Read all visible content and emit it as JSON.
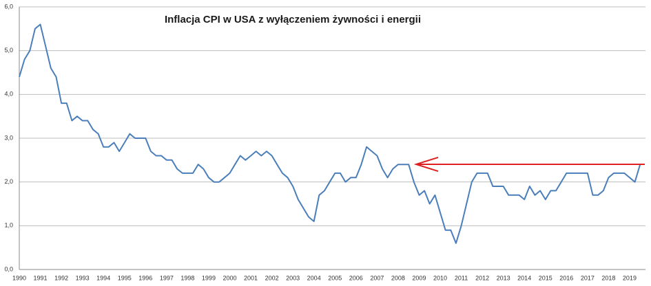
{
  "chart_data": {
    "type": "line",
    "title": "Inflacja CPI w USA z wyłączeniem żywności i energii",
    "categories": [
      "1990",
      null,
      null,
      null,
      "1991",
      null,
      null,
      null,
      "1992",
      null,
      null,
      null,
      "1993",
      null,
      null,
      null,
      "1994",
      null,
      null,
      null,
      "1995",
      null,
      null,
      null,
      "1996",
      null,
      null,
      null,
      "1997",
      null,
      null,
      null,
      "1998",
      null,
      null,
      null,
      "1999",
      null,
      null,
      null,
      "2000",
      null,
      null,
      null,
      "2001",
      null,
      null,
      null,
      "2002",
      null,
      null,
      null,
      "2003",
      null,
      null,
      null,
      "2004",
      null,
      null,
      null,
      "2005",
      null,
      null,
      null,
      "2006",
      null,
      null,
      null,
      "2007",
      null,
      null,
      null,
      "2008",
      null,
      null,
      null,
      "2009",
      null,
      null,
      null,
      "2010",
      null,
      null,
      null,
      "2011",
      null,
      null,
      null,
      "2012",
      null,
      null,
      null,
      "2013",
      null,
      null,
      null,
      "2014",
      null,
      null,
      null,
      "2015",
      null,
      null,
      null,
      "2016",
      null,
      null,
      null,
      "2017",
      null,
      null,
      null,
      "2018",
      null,
      null,
      null,
      "2019",
      null,
      null
    ],
    "values": [
      4.4,
      4.8,
      5.0,
      5.5,
      5.6,
      5.1,
      4.6,
      4.4,
      3.8,
      3.8,
      3.4,
      3.5,
      3.4,
      3.4,
      3.2,
      3.1,
      2.8,
      2.8,
      2.9,
      2.7,
      2.9,
      3.1,
      3.0,
      3.0,
      3.0,
      2.7,
      2.6,
      2.6,
      2.5,
      2.5,
      2.3,
      2.2,
      2.2,
      2.2,
      2.4,
      2.3,
      2.1,
      2.0,
      2.0,
      2.1,
      2.2,
      2.4,
      2.6,
      2.5,
      2.6,
      2.7,
      2.6,
      2.7,
      2.6,
      2.4,
      2.2,
      2.1,
      1.9,
      1.6,
      1.4,
      1.2,
      1.1,
      1.7,
      1.8,
      2.0,
      2.2,
      2.2,
      2.0,
      2.1,
      2.1,
      2.4,
      2.8,
      2.7,
      2.6,
      2.3,
      2.1,
      2.3,
      2.4,
      2.4,
      2.4,
      2.0,
      1.7,
      1.8,
      1.5,
      1.7,
      1.3,
      0.9,
      0.9,
      0.6,
      1.0,
      1.5,
      2.0,
      2.2,
      2.2,
      2.2,
      1.9,
      1.9,
      1.9,
      1.7,
      1.7,
      1.7,
      1.6,
      1.9,
      1.7,
      1.8,
      1.6,
      1.8,
      1.8,
      2.0,
      2.2,
      2.2,
      2.2,
      2.2,
      2.2,
      1.7,
      1.7,
      1.8,
      2.1,
      2.2,
      2.2,
      2.2,
      2.1,
      2.0,
      2.4
    ],
    "color": "#4a7ebb",
    "ylim": [
      0,
      6
    ],
    "yticks": [
      {
        "value": 0,
        "label": "0,0"
      },
      {
        "value": 1,
        "label": "1,0"
      },
      {
        "value": 2,
        "label": "2,0"
      },
      {
        "value": 3,
        "label": "3,0"
      },
      {
        "value": 4,
        "label": "4,0"
      },
      {
        "value": 5,
        "label": "5,0"
      },
      {
        "value": 6,
        "label": "6,0"
      }
    ],
    "grid": true
  }
}
